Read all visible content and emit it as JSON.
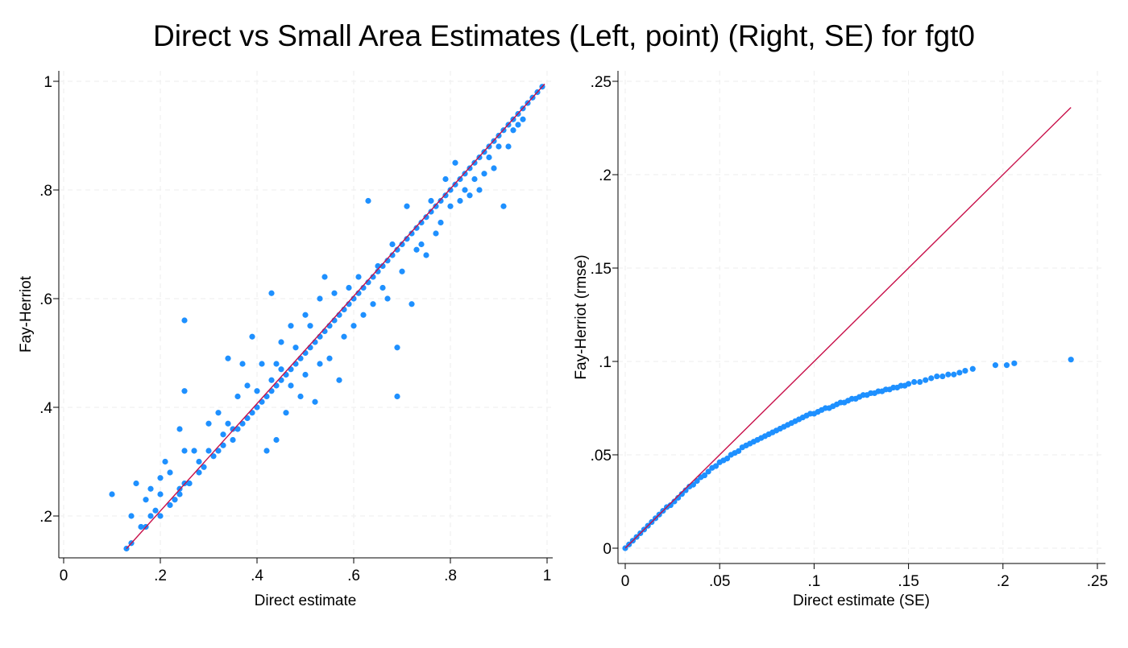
{
  "title": "Direct vs Small Area Estimates (Left, point) (Right, SE) for fgt0",
  "colors": {
    "point": "#1e90ff",
    "line": "#c8104a",
    "grid": "#eeeeee",
    "axis": "#000000"
  },
  "chart_data": [
    {
      "type": "scatter",
      "name": "left-panel",
      "xlabel": "Direct estimate",
      "ylabel": "Fay-Herriot",
      "xlim": [
        0,
        1
      ],
      "ylim": [
        0.14,
        1
      ],
      "xticks": [
        {
          "v": 0,
          "label": "0"
        },
        {
          "v": 0.2,
          "label": ".2"
        },
        {
          "v": 0.4,
          "label": ".4"
        },
        {
          "v": 0.6,
          "label": ".6"
        },
        {
          "v": 0.8,
          "label": ".8"
        },
        {
          "v": 1,
          "label": "1"
        }
      ],
      "yticks": [
        {
          "v": 0.2,
          "label": ".2"
        },
        {
          "v": 0.4,
          "label": ".4"
        },
        {
          "v": 0.6,
          "label": ".6"
        },
        {
          "v": 0.8,
          "label": ".8"
        },
        {
          "v": 1,
          "label": "1"
        }
      ],
      "grid": true,
      "reference_line": [
        [
          0.13,
          0.14
        ],
        [
          0.995,
          0.995
        ]
      ],
      "points": [
        [
          0.1,
          0.24
        ],
        [
          0.13,
          0.14
        ],
        [
          0.14,
          0.15
        ],
        [
          0.14,
          0.2
        ],
        [
          0.15,
          0.26
        ],
        [
          0.16,
          0.18
        ],
        [
          0.17,
          0.18
        ],
        [
          0.17,
          0.23
        ],
        [
          0.18,
          0.25
        ],
        [
          0.18,
          0.2
        ],
        [
          0.19,
          0.21
        ],
        [
          0.2,
          0.2
        ],
        [
          0.2,
          0.24
        ],
        [
          0.2,
          0.27
        ],
        [
          0.21,
          0.3
        ],
        [
          0.22,
          0.22
        ],
        [
          0.22,
          0.28
        ],
        [
          0.23,
          0.23
        ],
        [
          0.24,
          0.24
        ],
        [
          0.24,
          0.36
        ],
        [
          0.24,
          0.25
        ],
        [
          0.25,
          0.56
        ],
        [
          0.25,
          0.43
        ],
        [
          0.25,
          0.32
        ],
        [
          0.25,
          0.26
        ],
        [
          0.26,
          0.26
        ],
        [
          0.26,
          0.26
        ],
        [
          0.27,
          0.32
        ],
        [
          0.28,
          0.28
        ],
        [
          0.28,
          0.3
        ],
        [
          0.29,
          0.29
        ],
        [
          0.3,
          0.37
        ],
        [
          0.3,
          0.32
        ],
        [
          0.31,
          0.31
        ],
        [
          0.32,
          0.32
        ],
        [
          0.32,
          0.39
        ],
        [
          0.33,
          0.33
        ],
        [
          0.33,
          0.35
        ],
        [
          0.34,
          0.49
        ],
        [
          0.34,
          0.37
        ],
        [
          0.35,
          0.34
        ],
        [
          0.35,
          0.36
        ],
        [
          0.36,
          0.36
        ],
        [
          0.36,
          0.42
        ],
        [
          0.37,
          0.37
        ],
        [
          0.37,
          0.48
        ],
        [
          0.38,
          0.38
        ],
        [
          0.38,
          0.44
        ],
        [
          0.39,
          0.53
        ],
        [
          0.39,
          0.39
        ],
        [
          0.4,
          0.4
        ],
        [
          0.4,
          0.43
        ],
        [
          0.41,
          0.41
        ],
        [
          0.41,
          0.48
        ],
        [
          0.42,
          0.42
        ],
        [
          0.42,
          0.32
        ],
        [
          0.43,
          0.43
        ],
        [
          0.43,
          0.61
        ],
        [
          0.43,
          0.45
        ],
        [
          0.44,
          0.34
        ],
        [
          0.44,
          0.44
        ],
        [
          0.44,
          0.48
        ],
        [
          0.45,
          0.45
        ],
        [
          0.45,
          0.52
        ],
        [
          0.45,
          0.47
        ],
        [
          0.46,
          0.46
        ],
        [
          0.46,
          0.39
        ],
        [
          0.47,
          0.47
        ],
        [
          0.47,
          0.55
        ],
        [
          0.47,
          0.44
        ],
        [
          0.48,
          0.48
        ],
        [
          0.48,
          0.51
        ],
        [
          0.49,
          0.49
        ],
        [
          0.49,
          0.42
        ],
        [
          0.5,
          0.5
        ],
        [
          0.5,
          0.57
        ],
        [
          0.5,
          0.46
        ],
        [
          0.51,
          0.51
        ],
        [
          0.51,
          0.55
        ],
        [
          0.52,
          0.52
        ],
        [
          0.52,
          0.41
        ],
        [
          0.53,
          0.53
        ],
        [
          0.53,
          0.6
        ],
        [
          0.53,
          0.48
        ],
        [
          0.54,
          0.54
        ],
        [
          0.54,
          0.64
        ],
        [
          0.55,
          0.55
        ],
        [
          0.55,
          0.49
        ],
        [
          0.56,
          0.56
        ],
        [
          0.56,
          0.61
        ],
        [
          0.57,
          0.57
        ],
        [
          0.57,
          0.45
        ],
        [
          0.58,
          0.58
        ],
        [
          0.58,
          0.53
        ],
        [
          0.59,
          0.59
        ],
        [
          0.59,
          0.62
        ],
        [
          0.6,
          0.6
        ],
        [
          0.6,
          0.55
        ],
        [
          0.61,
          0.61
        ],
        [
          0.61,
          0.64
        ],
        [
          0.62,
          0.62
        ],
        [
          0.62,
          0.57
        ],
        [
          0.63,
          0.63
        ],
        [
          0.63,
          0.78
        ],
        [
          0.64,
          0.64
        ],
        [
          0.64,
          0.59
        ],
        [
          0.65,
          0.65
        ],
        [
          0.65,
          0.66
        ],
        [
          0.66,
          0.66
        ],
        [
          0.66,
          0.62
        ],
        [
          0.67,
          0.67
        ],
        [
          0.67,
          0.6
        ],
        [
          0.68,
          0.68
        ],
        [
          0.68,
          0.7
        ],
        [
          0.69,
          0.69
        ],
        [
          0.69,
          0.42
        ],
        [
          0.69,
          0.51
        ],
        [
          0.7,
          0.7
        ],
        [
          0.7,
          0.65
        ],
        [
          0.71,
          0.71
        ],
        [
          0.71,
          0.77
        ],
        [
          0.72,
          0.72
        ],
        [
          0.72,
          0.59
        ],
        [
          0.73,
          0.73
        ],
        [
          0.73,
          0.69
        ],
        [
          0.74,
          0.74
        ],
        [
          0.74,
          0.7
        ],
        [
          0.75,
          0.75
        ],
        [
          0.75,
          0.68
        ],
        [
          0.76,
          0.76
        ],
        [
          0.76,
          0.78
        ],
        [
          0.77,
          0.77
        ],
        [
          0.77,
          0.72
        ],
        [
          0.78,
          0.78
        ],
        [
          0.78,
          0.74
        ],
        [
          0.79,
          0.79
        ],
        [
          0.79,
          0.82
        ],
        [
          0.8,
          0.8
        ],
        [
          0.8,
          0.77
        ],
        [
          0.81,
          0.81
        ],
        [
          0.81,
          0.85
        ],
        [
          0.82,
          0.82
        ],
        [
          0.82,
          0.78
        ],
        [
          0.83,
          0.83
        ],
        [
          0.83,
          0.8
        ],
        [
          0.84,
          0.84
        ],
        [
          0.84,
          0.79
        ],
        [
          0.85,
          0.85
        ],
        [
          0.85,
          0.82
        ],
        [
          0.86,
          0.86
        ],
        [
          0.86,
          0.8
        ],
        [
          0.87,
          0.87
        ],
        [
          0.87,
          0.83
        ],
        [
          0.88,
          0.88
        ],
        [
          0.88,
          0.86
        ],
        [
          0.89,
          0.89
        ],
        [
          0.89,
          0.84
        ],
        [
          0.9,
          0.9
        ],
        [
          0.9,
          0.88
        ],
        [
          0.91,
          0.91
        ],
        [
          0.91,
          0.77
        ],
        [
          0.92,
          0.92
        ],
        [
          0.92,
          0.88
        ],
        [
          0.93,
          0.93
        ],
        [
          0.93,
          0.91
        ],
        [
          0.94,
          0.94
        ],
        [
          0.94,
          0.92
        ],
        [
          0.95,
          0.95
        ],
        [
          0.95,
          0.93
        ],
        [
          0.96,
          0.96
        ],
        [
          0.97,
          0.97
        ],
        [
          0.98,
          0.98
        ],
        [
          0.99,
          0.99
        ]
      ]
    },
    {
      "type": "scatter",
      "name": "right-panel",
      "xlabel": "Direct estimate (SE)",
      "ylabel": "Fay-Herriot (rmse)",
      "xlim": [
        0,
        0.25
      ],
      "ylim": [
        0,
        0.25
      ],
      "xticks": [
        {
          "v": 0,
          "label": "0"
        },
        {
          "v": 0.05,
          "label": ".05"
        },
        {
          "v": 0.1,
          "label": ".1"
        },
        {
          "v": 0.15,
          "label": ".15"
        },
        {
          "v": 0.2,
          "label": ".2"
        },
        {
          "v": 0.25,
          "label": ".25"
        }
      ],
      "yticks": [
        {
          "v": 0,
          "label": "0"
        },
        {
          "v": 0.05,
          "label": ".05"
        },
        {
          "v": 0.1,
          "label": ".1"
        },
        {
          "v": 0.15,
          "label": ".15"
        },
        {
          "v": 0.2,
          "label": ".2"
        },
        {
          "v": 0.25,
          "label": ".25"
        }
      ],
      "grid": true,
      "reference_line": [
        [
          0,
          0
        ],
        [
          0.236,
          0.236
        ]
      ],
      "points": [
        [
          0.0,
          0.0
        ],
        [
          0.002,
          0.002
        ],
        [
          0.004,
          0.004
        ],
        [
          0.006,
          0.006
        ],
        [
          0.008,
          0.008
        ],
        [
          0.01,
          0.01
        ],
        [
          0.012,
          0.012
        ],
        [
          0.014,
          0.014
        ],
        [
          0.016,
          0.016
        ],
        [
          0.018,
          0.018
        ],
        [
          0.02,
          0.02
        ],
        [
          0.022,
          0.022
        ],
        [
          0.024,
          0.023
        ],
        [
          0.026,
          0.025
        ],
        [
          0.028,
          0.027
        ],
        [
          0.03,
          0.029
        ],
        [
          0.032,
          0.031
        ],
        [
          0.034,
          0.033
        ],
        [
          0.036,
          0.034
        ],
        [
          0.038,
          0.036
        ],
        [
          0.04,
          0.038
        ],
        [
          0.042,
          0.039
        ],
        [
          0.044,
          0.041
        ],
        [
          0.046,
          0.043
        ],
        [
          0.048,
          0.044
        ],
        [
          0.05,
          0.046
        ],
        [
          0.052,
          0.047
        ],
        [
          0.054,
          0.048
        ],
        [
          0.056,
          0.05
        ],
        [
          0.058,
          0.051
        ],
        [
          0.06,
          0.052
        ],
        [
          0.062,
          0.054
        ],
        [
          0.064,
          0.055
        ],
        [
          0.066,
          0.056
        ],
        [
          0.068,
          0.057
        ],
        [
          0.07,
          0.058
        ],
        [
          0.072,
          0.059
        ],
        [
          0.074,
          0.06
        ],
        [
          0.076,
          0.061
        ],
        [
          0.078,
          0.062
        ],
        [
          0.08,
          0.063
        ],
        [
          0.082,
          0.064
        ],
        [
          0.084,
          0.065
        ],
        [
          0.086,
          0.066
        ],
        [
          0.088,
          0.067
        ],
        [
          0.09,
          0.068
        ],
        [
          0.092,
          0.069
        ],
        [
          0.094,
          0.07
        ],
        [
          0.096,
          0.071
        ],
        [
          0.098,
          0.072
        ],
        [
          0.1,
          0.072
        ],
        [
          0.102,
          0.073
        ],
        [
          0.104,
          0.074
        ],
        [
          0.106,
          0.075
        ],
        [
          0.108,
          0.075
        ],
        [
          0.11,
          0.076
        ],
        [
          0.112,
          0.077
        ],
        [
          0.114,
          0.078
        ],
        [
          0.116,
          0.078
        ],
        [
          0.118,
          0.079
        ],
        [
          0.12,
          0.08
        ],
        [
          0.122,
          0.08
        ],
        [
          0.124,
          0.081
        ],
        [
          0.126,
          0.082
        ],
        [
          0.128,
          0.082
        ],
        [
          0.13,
          0.083
        ],
        [
          0.132,
          0.083
        ],
        [
          0.134,
          0.084
        ],
        [
          0.136,
          0.084
        ],
        [
          0.138,
          0.085
        ],
        [
          0.14,
          0.085
        ],
        [
          0.142,
          0.086
        ],
        [
          0.144,
          0.086
        ],
        [
          0.146,
          0.087
        ],
        [
          0.148,
          0.087
        ],
        [
          0.15,
          0.088
        ],
        [
          0.153,
          0.089
        ],
        [
          0.156,
          0.089
        ],
        [
          0.159,
          0.09
        ],
        [
          0.162,
          0.091
        ],
        [
          0.165,
          0.092
        ],
        [
          0.168,
          0.092
        ],
        [
          0.171,
          0.093
        ],
        [
          0.174,
          0.093
        ],
        [
          0.177,
          0.094
        ],
        [
          0.18,
          0.095
        ],
        [
          0.184,
          0.096
        ],
        [
          0.196,
          0.098
        ],
        [
          0.202,
          0.098
        ],
        [
          0.206,
          0.099
        ],
        [
          0.236,
          0.101
        ]
      ]
    }
  ]
}
